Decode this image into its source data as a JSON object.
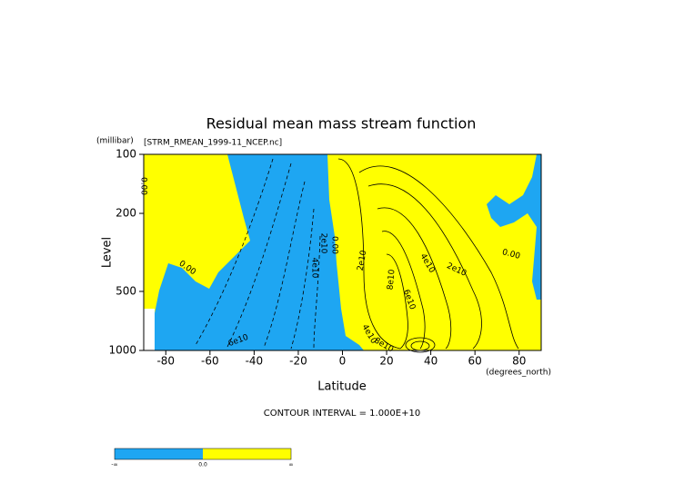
{
  "chart_data": {
    "type": "contour",
    "title": "Residual mean mass stream function",
    "y_units": "(millibar)",
    "dataset": "[STRM_RMEAN_1999-11_NCEP.nc]",
    "ylabel": "Level",
    "xlabel": "Latitude",
    "x_units": "(degrees_north)",
    "contour_interval": "CONTOUR INTERVAL = 1.000E+10",
    "xlim": [
      -90,
      90
    ],
    "xticks": [
      -80,
      -60,
      -40,
      -20,
      0,
      20,
      40,
      60,
      80
    ],
    "ylim": [
      1000,
      100
    ],
    "yticks": [
      100,
      200,
      500,
      1000
    ],
    "log_y": true,
    "negative_color": "#1ea6f2",
    "positive_color": "#ffff00",
    "contour_labels": [
      "0.00",
      "0.00",
      "2e10",
      "0.00",
      "4e10",
      "6e10",
      "2e10",
      "8e10",
      "4e10",
      "2e10",
      "0.00",
      "6e10",
      "4e10",
      "8e10"
    ],
    "colorbar_labels": [
      "-∞",
      "0.0",
      "∞"
    ]
  }
}
